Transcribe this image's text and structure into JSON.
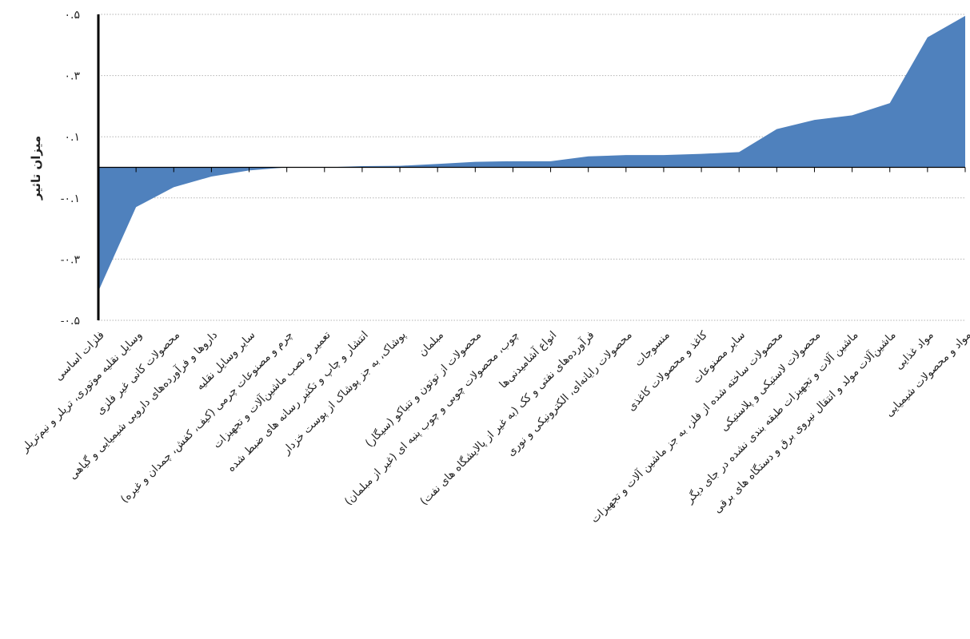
{
  "chart_data": {
    "type": "area",
    "ylabel": "میزان تاثیر",
    "xlabel": "",
    "title": "",
    "ylim": [
      -0.5,
      0.5
    ],
    "yticks": [
      -0.5,
      -0.3,
      -0.1,
      0.1,
      0.3,
      0.5
    ],
    "ytick_labels": [
      "-۰.۵",
      "-۰.۳",
      "-۰.۱",
      "۰.۱",
      "۰.۳",
      "۰.۵"
    ],
    "grid": "horizontal-dotted",
    "color": "#4f81bd",
    "categories": [
      "فلزات اساسی",
      "وسایل نقلیه موتوری، تریلر و نیم‌تریلر",
      "محصولات کانی غیر فلزی",
      "داروها و فرآورده‌های دارویی شیمیایی و گیاهی",
      "سایر وسایل نقلیه",
      "چرم و مصنوعات چرمی (کیف، کفش، چمدان و غیره)",
      "تعمیر و نصب ماشین‌آلات و تجهیزات",
      "انتشار و چاپ و تکثیر رسانه های ضبط شده",
      "پوشاک، به جز پوشاک از پوست خزدار",
      "مبلمان",
      "محصولات از توتون و تنباکو (سیگار)",
      "چوب، محصولات چوبی و چوب پنبه ای (غیر از مبلمان)",
      "انواع آشامیدنی‌ها",
      "فرآورده‌های نفتی و کک (به غیر از پالایشگاه های نفت)",
      "محصولات رایانه‌ای، الکترونیکی و نوری",
      "منسوجات",
      "کاغذ و محصولات کاغذی",
      "سایر مصنوعات",
      "محصولات ساخته شده از فلز، به جز ماشین آلات و تجهیزات",
      "محصولات لاستیکی و پلاستیکی",
      "ماشین آلات و تجهیزات طبقه بندی نشده در جای دیگر",
      "ماشین‌آلات مولد و انتقال نیروی برق و دستگاه های برقی",
      "مواد غذایی",
      "مواد و محصولات شیمیایی"
    ],
    "values": [
      -0.405,
      -0.13,
      -0.065,
      -0.03,
      -0.01,
      0.0,
      0.0,
      0.004,
      0.005,
      0.011,
      0.018,
      0.02,
      0.02,
      0.036,
      0.04,
      0.04,
      0.044,
      0.05,
      0.125,
      0.155,
      0.17,
      0.21,
      0.425,
      0.495
    ]
  }
}
